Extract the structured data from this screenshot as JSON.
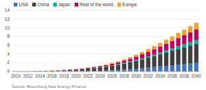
{
  "chart_data": {
    "type": "bar",
    "stacked": true,
    "grid": true,
    "legend": "upper left",
    "x": [
      2010,
      2011,
      2012,
      2013,
      2014,
      2015,
      2016,
      2017,
      2018,
      2019,
      2020,
      2021,
      2022,
      2023,
      2024,
      2025,
      2026,
      2027,
      2028,
      2029,
      2030,
      2031,
      2032,
      2033,
      2034,
      2035,
      2036,
      2037,
      2038,
      2039,
      2040
    ],
    "xlim": [
      2009.3,
      2040.7
    ],
    "xticks": [
      2010,
      2012,
      2014,
      2016,
      2018,
      2020,
      2022,
      2024,
      2026,
      2028,
      2030,
      2032,
      2034,
      2036,
      2038,
      2040
    ],
    "ylim": [
      0,
      14
    ],
    "yticks": [
      0,
      2,
      4,
      6,
      8,
      10,
      12,
      14
    ],
    "series": [
      {
        "name": "USA",
        "color": "#4472c4",
        "values": [
          0.01,
          0.01,
          0.02,
          0.02,
          0.03,
          0.04,
          0.05,
          0.06,
          0.07,
          0.08,
          0.09,
          0.1,
          0.12,
          0.14,
          0.17,
          0.21,
          0.26,
          0.33,
          0.41,
          0.51,
          0.62,
          0.74,
          0.87,
          1.0,
          1.13,
          1.27,
          1.41,
          1.55,
          1.68,
          1.8,
          1.93
        ]
      },
      {
        "name": "China",
        "color": "#404040",
        "values": [
          0.01,
          0.01,
          0.02,
          0.03,
          0.05,
          0.07,
          0.1,
          0.14,
          0.19,
          0.25,
          0.32,
          0.4,
          0.5,
          0.61,
          0.73,
          0.87,
          1.02,
          1.19,
          1.37,
          1.57,
          1.78,
          2.01,
          2.26,
          2.52,
          2.78,
          3.05,
          3.32,
          3.6,
          3.87,
          4.14,
          4.4
        ]
      },
      {
        "name": "Japan",
        "color": "#00b0a0",
        "values": [
          0.0,
          0.0,
          0.0,
          0.0,
          0.01,
          0.01,
          0.01,
          0.01,
          0.02,
          0.02,
          0.03,
          0.03,
          0.04,
          0.05,
          0.06,
          0.08,
          0.1,
          0.12,
          0.15,
          0.18,
          0.22,
          0.26,
          0.31,
          0.36,
          0.42,
          0.48,
          0.54,
          0.61,
          0.68,
          0.75,
          0.82
        ]
      },
      {
        "name": "Rest of the world",
        "color": "#c00060",
        "values": [
          0.01,
          0.01,
          0.01,
          0.02,
          0.02,
          0.03,
          0.04,
          0.05,
          0.07,
          0.09,
          0.11,
          0.14,
          0.17,
          0.21,
          0.26,
          0.31,
          0.38,
          0.46,
          0.55,
          0.66,
          0.78,
          0.92,
          1.07,
          1.22,
          1.38,
          1.55,
          1.72,
          1.9,
          2.08,
          2.26,
          2.45
        ]
      },
      {
        "name": "Europe",
        "color": "#f0a030",
        "values": [
          0.0,
          0.0,
          0.0,
          0.01,
          0.01,
          0.01,
          0.02,
          0.02,
          0.03,
          0.04,
          0.05,
          0.06,
          0.08,
          0.1,
          0.13,
          0.16,
          0.2,
          0.25,
          0.3,
          0.37,
          0.44,
          0.53,
          0.62,
          0.72,
          0.82,
          0.93,
          1.04,
          1.16,
          1.27,
          1.39,
          1.52
        ]
      }
    ],
    "annotations": [
      "Source: Bloomberg New Energy Finance"
    ]
  }
}
